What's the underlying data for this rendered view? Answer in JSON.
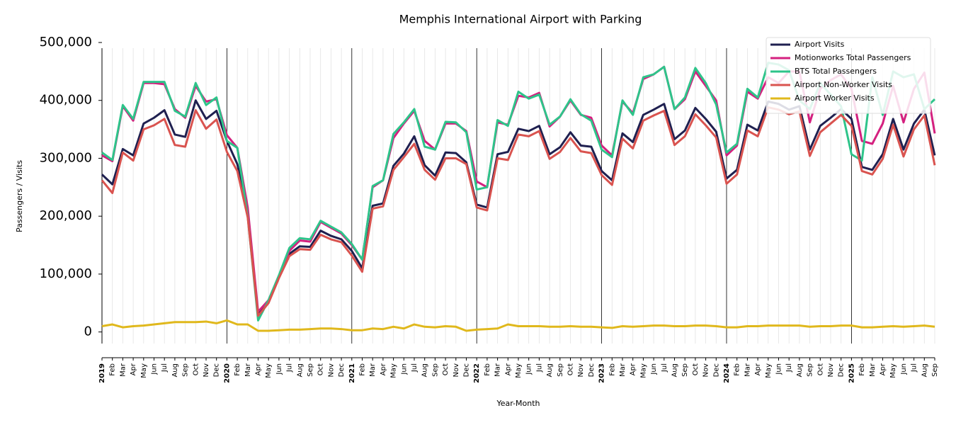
{
  "chart_data": {
    "type": "line",
    "title": "Memphis International Airport with Parking",
    "x_label": "Year-Month",
    "y_label": "Passengers / Visits",
    "categories": [
      "2019",
      "Feb",
      "Mar",
      "Apr",
      "May",
      "Jun",
      "Jul",
      "Aug",
      "Sep",
      "Oct",
      "Nov",
      "Dec",
      "2020",
      "Feb",
      "Mar",
      "Apr",
      "May",
      "Jun",
      "Jul",
      "Aug",
      "Sep",
      "Oct",
      "Nov",
      "Dec",
      "2021",
      "Feb",
      "Mar",
      "Apr",
      "May",
      "Jun",
      "Jul",
      "Aug",
      "Sep",
      "Oct",
      "Nov",
      "Dec",
      "2022",
      "Feb",
      "Mar",
      "Apr",
      "May",
      "Jun",
      "Jul",
      "Aug",
      "Sep",
      "Oct",
      "Nov",
      "Dec",
      "2023",
      "Feb",
      "Mar",
      "Apr",
      "May",
      "Jun",
      "Jul",
      "Aug",
      "Sep",
      "Oct",
      "Nov",
      "Dec",
      "2024",
      "Feb",
      "Mar",
      "Apr",
      "May",
      "Jun",
      "Jul",
      "Aug",
      "Sep",
      "Oct",
      "Nov",
      "Dec",
      "2025",
      "Feb",
      "Mar",
      "Apr",
      "May",
      "Jun",
      "Jul",
      "Aug",
      "Sep"
    ],
    "ylim": [
      -20000,
      500000
    ],
    "yticks": [
      0,
      {
        "value": 100000,
        "label": "100,000"
      },
      {
        "value": 200000,
        "label": "200,000"
      },
      {
        "value": 300000,
        "label": "300,000"
      },
      {
        "value": 400000,
        "label": "400,000"
      },
      {
        "value": 500000,
        "label": "500,000"
      }
    ],
    "grid": true,
    "legend": "upper right",
    "series": [
      {
        "name": "Airport Visits",
        "color": "#1f2050",
        "values": [
          272000,
          255000,
          316000,
          305000,
          360000,
          370000,
          383000,
          341000,
          337000,
          400000,
          368000,
          382000,
          330000,
          290000,
          210000,
          30000,
          52000,
          95000,
          135000,
          148000,
          147000,
          175000,
          166000,
          160000,
          140000,
          110000,
          218000,
          222000,
          287000,
          308000,
          338000,
          288000,
          270000,
          310000,
          309000,
          293000,
          220000,
          215000,
          307000,
          311000,
          351000,
          347000,
          356000,
          307000,
          319000,
          345000,
          322000,
          320000,
          278000,
          262000,
          343000,
          328000,
          375000,
          384000,
          394000,
          333000,
          348000,
          387000,
          368000,
          346000,
          265000,
          280000,
          358000,
          348000,
          398000,
          394000,
          384000,
          390000,
          315000,
          356000,
          370000,
          385000,
          368000,
          285000,
          280000,
          307000,
          368000,
          315000,
          360000,
          384000,
          305000
        ]
      },
      {
        "name": "Motionworks Total Passengers",
        "color": "#d4207f",
        "values": [
          305000,
          295000,
          390000,
          365000,
          430000,
          430000,
          428000,
          385000,
          370000,
          425000,
          398000,
          402000,
          340000,
          318000,
          215000,
          35000,
          55000,
          97000,
          140000,
          158000,
          156000,
          190000,
          180000,
          170000,
          150000,
          125000,
          250000,
          262000,
          335000,
          360000,
          382000,
          330000,
          315000,
          360000,
          360000,
          347000,
          260000,
          250000,
          362000,
          358000,
          408000,
          405000,
          413000,
          355000,
          372000,
          400000,
          375000,
          370000,
          322000,
          305000,
          398000,
          378000,
          437000,
          445000,
          458000,
          385000,
          402000,
          450000,
          425000,
          400000,
          305000,
          322000,
          415000,
          403000,
          440000,
          430000,
          450000,
          450000,
          362000,
          420000,
          435000,
          445000,
          420000,
          330000,
          325000,
          360000,
          425000,
          362000,
          420000,
          448000,
          343000
        ]
      },
      {
        "name": "BTS Total Passengers",
        "color": "#2ec48a",
        "values": [
          310000,
          297000,
          392000,
          368000,
          432000,
          432000,
          432000,
          382000,
          372000,
          430000,
          392000,
          405000,
          330000,
          318000,
          200000,
          20000,
          55000,
          98000,
          145000,
          162000,
          160000,
          192000,
          182000,
          172000,
          152000,
          125000,
          252000,
          262000,
          342000,
          362000,
          385000,
          320000,
          315000,
          363000,
          362000,
          345000,
          246000,
          250000,
          366000,
          356000,
          415000,
          403000,
          410000,
          358000,
          372000,
          402000,
          376000,
          365000,
          315000,
          302000,
          400000,
          375000,
          440000,
          445000,
          458000,
          385000,
          405000,
          456000,
          430000,
          393000,
          310000,
          325000,
          420000,
          405000,
          465000,
          462000,
          452000,
          400000,
          385000,
          430000,
          410000,
          390000,
          307000,
          296000,
          440000,
          375000,
          450000,
          440000,
          445000,
          385000,
          402000
        ]
      },
      {
        "name": "Airport Non-Worker Visits",
        "color": "#d9534f",
        "values": [
          262000,
          240000,
          310000,
          296000,
          350000,
          357000,
          368000,
          323000,
          320000,
          383000,
          351000,
          367000,
          311000,
          278000,
          198000,
          28000,
          50000,
          93000,
          131000,
          143000,
          142000,
          168000,
          160000,
          155000,
          132000,
          104000,
          213000,
          217000,
          280000,
          302000,
          325000,
          280000,
          263000,
          300000,
          300000,
          290000,
          215000,
          210000,
          300000,
          297000,
          341000,
          338000,
          347000,
          299000,
          311000,
          335000,
          312000,
          309000,
          271000,
          254000,
          334000,
          317000,
          365000,
          374000,
          382000,
          323000,
          338000,
          376000,
          357000,
          336000,
          256000,
          272000,
          348000,
          338000,
          388000,
          384000,
          376000,
          381000,
          304000,
          345000,
          360000,
          375000,
          356000,
          278000,
          272000,
          299000,
          358000,
          303000,
          350000,
          374000,
          288000
        ]
      },
      {
        "name": "Airport Worker Visits",
        "color": "#e0b81c",
        "values": [
          10000,
          13000,
          8000,
          10000,
          11000,
          13000,
          15000,
          17000,
          17000,
          17000,
          18000,
          15000,
          20000,
          13000,
          13000,
          2000,
          2000,
          3000,
          4000,
          4000,
          5000,
          6000,
          6000,
          5000,
          3000,
          3000,
          6000,
          5000,
          9000,
          6000,
          13000,
          9000,
          8000,
          10000,
          9000,
          2000,
          4000,
          5000,
          6000,
          13000,
          10000,
          10000,
          10000,
          9000,
          9000,
          10000,
          9000,
          9000,
          8000,
          7000,
          10000,
          9000,
          10000,
          11000,
          11000,
          10000,
          10000,
          11000,
          11000,
          10000,
          8000,
          8000,
          10000,
          10000,
          11000,
          11000,
          11000,
          11000,
          9000,
          10000,
          10000,
          11000,
          11000,
          8000,
          8000,
          9000,
          10000,
          9000,
          10000,
          11000,
          9000
        ]
      }
    ]
  }
}
